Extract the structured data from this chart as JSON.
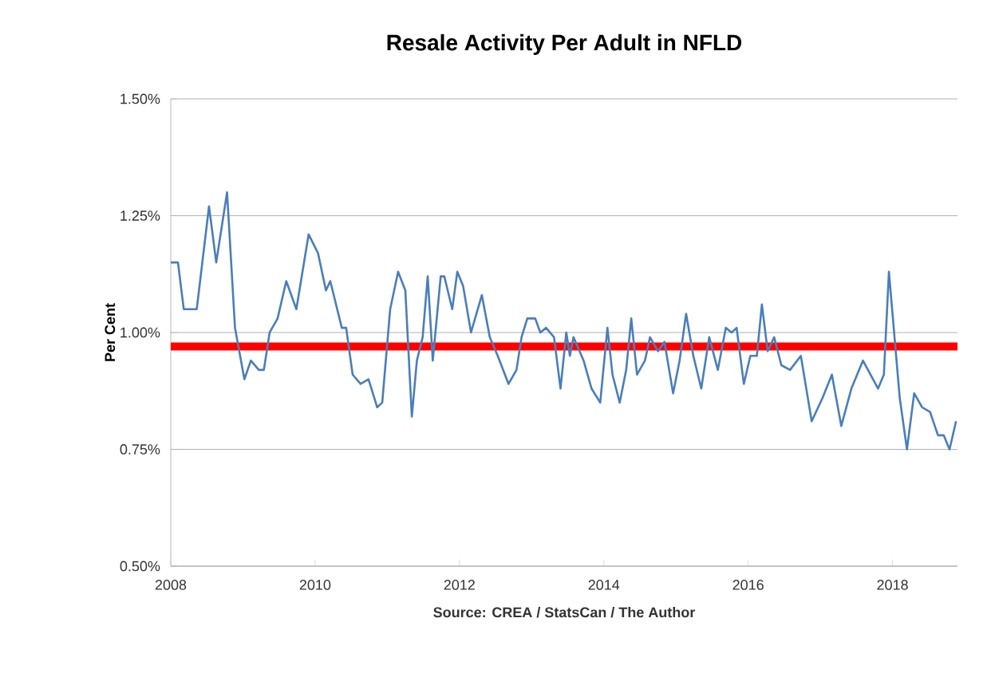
{
  "chart_data": {
    "type": "line",
    "title": "Resale Activity Per Adult in NFLD",
    "ylabel": "Per Cent",
    "annotations": [
      "Source:  CREA / StatsCan / The Author"
    ],
    "xlim": [
      2008,
      2018.9
    ],
    "xticks": [
      2008,
      2010,
      2012,
      2014,
      2016,
      2018
    ],
    "ylim": [
      0.5,
      1.5
    ],
    "yticks": [
      {
        "value": 0.5,
        "label": "0.50%"
      },
      {
        "value": 0.75,
        "label": "0.75%"
      },
      {
        "value": 1.0,
        "label": "1.00%"
      },
      {
        "value": 1.25,
        "label": "1.25%"
      },
      {
        "value": 1.5,
        "label": "1.50%"
      }
    ],
    "grid": "y",
    "ref_lines": [
      {
        "axis": "y",
        "value": 0.97,
        "color": "#ff0000"
      }
    ],
    "series": [
      {
        "color": "#4a7ebb",
        "x": [
          2008.0,
          2008.1,
          2008.18,
          2008.36,
          2008.53,
          2008.63,
          2008.78,
          2008.89,
          2009.02,
          2009.11,
          2009.22,
          2009.29,
          2009.37,
          2009.48,
          2009.6,
          2009.74,
          2009.91,
          2010.04,
          2010.15,
          2010.21,
          2010.37,
          2010.43,
          2010.52,
          2010.63,
          2010.74,
          2010.86,
          2010.93,
          2011.04,
          2011.15,
          2011.25,
          2011.34,
          2011.41,
          2011.49,
          2011.56,
          2011.63,
          2011.74,
          2011.79,
          2011.9,
          2011.97,
          2012.05,
          2012.16,
          2012.31,
          2012.42,
          2012.53,
          2012.68,
          2012.79,
          2012.86,
          2012.94,
          2013.05,
          2013.12,
          2013.2,
          2013.31,
          2013.4,
          2013.48,
          2013.53,
          2013.58,
          2013.72,
          2013.83,
          2013.95,
          2014.05,
          2014.12,
          2014.22,
          2014.31,
          2014.38,
          2014.46,
          2014.57,
          2014.64,
          2014.75,
          2014.84,
          2014.96,
          2015.05,
          2015.14,
          2015.24,
          2015.35,
          2015.46,
          2015.58,
          2015.69,
          2015.77,
          2015.84,
          2015.94,
          2016.03,
          2016.12,
          2016.19,
          2016.27,
          2016.36,
          2016.46,
          2016.58,
          2016.73,
          2016.88,
          2017.03,
          2017.16,
          2017.29,
          2017.43,
          2017.59,
          2017.8,
          2017.88,
          2017.95,
          2018.0,
          2018.1,
          2018.2,
          2018.3,
          2018.41,
          2018.52,
          2018.63,
          2018.71,
          2018.79,
          2018.88
        ],
        "values": [
          1.15,
          1.15,
          1.05,
          1.05,
          1.27,
          1.15,
          1.3,
          1.01,
          0.9,
          0.94,
          0.92,
          0.92,
          1.0,
          1.03,
          1.11,
          1.05,
          1.21,
          1.17,
          1.09,
          1.11,
          1.01,
          1.01,
          0.91,
          0.89,
          0.9,
          0.84,
          0.85,
          1.05,
          1.13,
          1.09,
          0.82,
          0.94,
          0.99,
          1.12,
          0.94,
          1.12,
          1.12,
          1.05,
          1.13,
          1.1,
          1.0,
          1.08,
          0.99,
          0.95,
          0.89,
          0.92,
          0.99,
          1.03,
          1.03,
          1.0,
          1.01,
          0.99,
          0.88,
          1.0,
          0.95,
          0.99,
          0.94,
          0.88,
          0.85,
          1.01,
          0.91,
          0.85,
          0.92,
          1.03,
          0.91,
          0.94,
          0.99,
          0.96,
          0.98,
          0.87,
          0.94,
          1.04,
          0.95,
          0.88,
          0.99,
          0.92,
          1.01,
          1.0,
          1.01,
          0.89,
          0.95,
          0.95,
          1.06,
          0.96,
          0.99,
          0.93,
          0.92,
          0.95,
          0.81,
          0.86,
          0.91,
          0.8,
          0.88,
          0.94,
          0.88,
          0.91,
          1.13,
          1.04,
          0.86,
          0.75,
          0.87,
          0.84,
          0.83,
          0.78,
          0.78,
          0.75,
          0.81
        ]
      }
    ]
  }
}
